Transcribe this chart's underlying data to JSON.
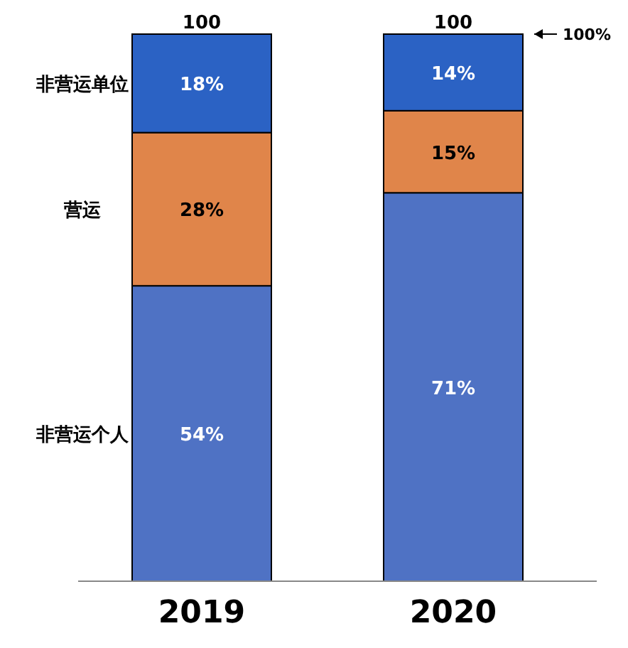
{
  "chart_data": {
    "type": "bar",
    "stacked": true,
    "categories": [
      "2019",
      "2020"
    ],
    "series": [
      {
        "name": "非营运个人",
        "color": "#4f72c4",
        "values": [
          54,
          71
        ],
        "value_labels": [
          "54%",
          "71%"
        ]
      },
      {
        "name": "营运",
        "color": "#e0854a",
        "values": [
          28,
          15
        ],
        "value_labels": [
          "28%",
          "15%"
        ]
      },
      {
        "name": "非营运单位",
        "color": "#2b62c4",
        "values": [
          18,
          14
        ],
        "value_labels": [
          "18%",
          "14%"
        ]
      }
    ],
    "totals": [
      "100",
      "100"
    ],
    "annotations": [
      "100%"
    ],
    "legend": false
  }
}
